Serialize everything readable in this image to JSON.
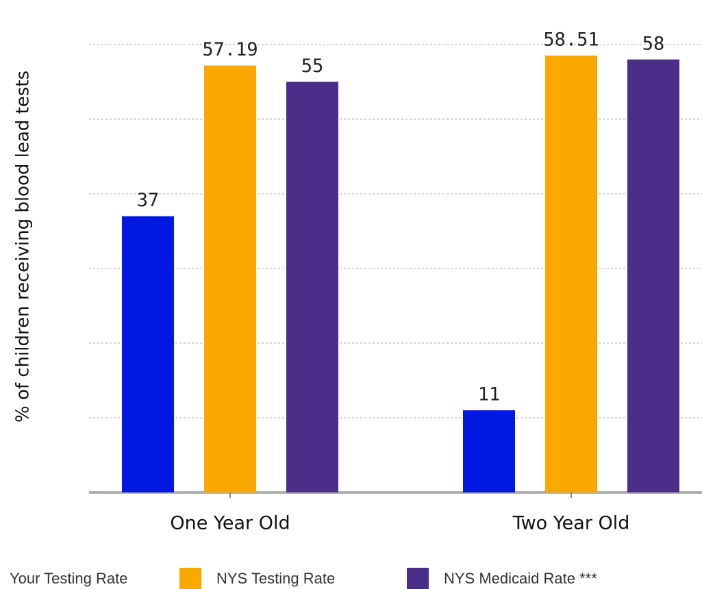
{
  "chart_data": {
    "type": "bar",
    "y_axis_label": "% of children receiving blood lead tests",
    "categories": [
      "One Year Old",
      "Two Year Old"
    ],
    "series": [
      {
        "name": "Your Testing Rate",
        "color": "#0018e0",
        "values": [
          37,
          11
        ]
      },
      {
        "name": "NYS Testing Rate",
        "color": "#f9a800",
        "values": [
          57.19,
          58.51
        ]
      },
      {
        "name": "NYS Medicaid Rate ***",
        "color": "#4b2d8a",
        "values": [
          55,
          58
        ]
      }
    ],
    "ylim": [
      0,
      60
    ],
    "yticks": [
      0,
      10,
      20,
      30,
      40,
      50,
      60
    ],
    "grid": true
  }
}
